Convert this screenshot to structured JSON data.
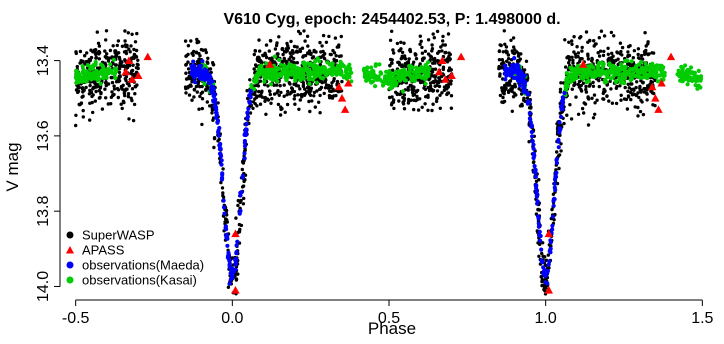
{
  "chart_data": {
    "type": "scatter",
    "title": "V610 Cyg, epoch: 2454402.53, P: 1.498000 d.",
    "xlabel": "Phase",
    "ylabel": "V mag",
    "xlim": [
      -0.55,
      1.55
    ],
    "ylim": [
      14.02,
      13.34
    ],
    "y_inverted": true,
    "x_ticks": [
      -0.5,
      0.0,
      0.5,
      1.0,
      1.5
    ],
    "x_tick_labels": [
      "-0.5",
      "0.0",
      "0.5",
      "1.0",
      "1.5"
    ],
    "y_ticks": [
      13.4,
      13.6,
      13.8,
      14.0
    ],
    "y_tick_labels": [
      "13.4",
      "13.6",
      "13.8",
      "14.0"
    ],
    "grid": false,
    "legend_position": "bottom-left",
    "light_curve": {
      "baseline_mag": 13.43,
      "primary_min_phase": 0.0,
      "primary_min_mag": 13.97,
      "secondary_min_phase": 0.5,
      "secondary_min_mag": 13.45
    },
    "series": [
      {
        "name": "SuperWASP",
        "marker": "circle",
        "color": "#000000",
        "coverage": [
          [
            -0.5,
            -0.3
          ],
          [
            -0.15,
            0.35
          ],
          [
            0.5,
            0.7
          ],
          [
            0.85,
            1.35
          ]
        ]
      },
      {
        "name": "APASS",
        "marker": "triangle",
        "color": "#ff0000",
        "points": [
          {
            "x": -0.34,
            "y": 13.43
          },
          {
            "x": -0.33,
            "y": 13.4
          },
          {
            "x": -0.32,
            "y": 13.45
          },
          {
            "x": -0.3,
            "y": 13.44
          },
          {
            "x": -0.27,
            "y": 13.39
          },
          {
            "x": 0.01,
            "y": 13.86
          },
          {
            "x": 0.01,
            "y": 14.01
          },
          {
            "x": 0.12,
            "y": 13.41
          },
          {
            "x": 0.34,
            "y": 13.47
          },
          {
            "x": 0.35,
            "y": 13.5
          },
          {
            "x": 0.36,
            "y": 13.53
          },
          {
            "x": 0.37,
            "y": 13.46
          },
          {
            "x": 0.66,
            "y": 13.43
          },
          {
            "x": 0.67,
            "y": 13.4
          },
          {
            "x": 0.68,
            "y": 13.45
          },
          {
            "x": 0.7,
            "y": 13.44
          },
          {
            "x": 0.73,
            "y": 13.39
          },
          {
            "x": 1.01,
            "y": 13.86
          },
          {
            "x": 1.01,
            "y": 14.01
          },
          {
            "x": 1.12,
            "y": 13.41
          },
          {
            "x": 1.34,
            "y": 13.47
          },
          {
            "x": 1.35,
            "y": 13.5
          },
          {
            "x": 1.36,
            "y": 13.53
          },
          {
            "x": 1.37,
            "y": 13.46
          },
          {
            "x": 1.4,
            "y": 13.39
          }
        ]
      },
      {
        "name": "observations(Maeda)",
        "marker": "circle",
        "color": "#0000ff",
        "coverage": [
          [
            -0.13,
            0.06
          ],
          [
            0.87,
            1.06
          ]
        ]
      },
      {
        "name": "observations(Kasai)",
        "marker": "circle",
        "color": "#00cc00",
        "coverage": [
          [
            -0.5,
            -0.37
          ],
          [
            -0.1,
            -0.06
          ],
          [
            0.06,
            0.38
          ],
          [
            0.42,
            0.63
          ],
          [
            0.9,
            0.94
          ],
          [
            1.06,
            1.38
          ],
          [
            1.42,
            1.5
          ]
        ]
      }
    ]
  }
}
